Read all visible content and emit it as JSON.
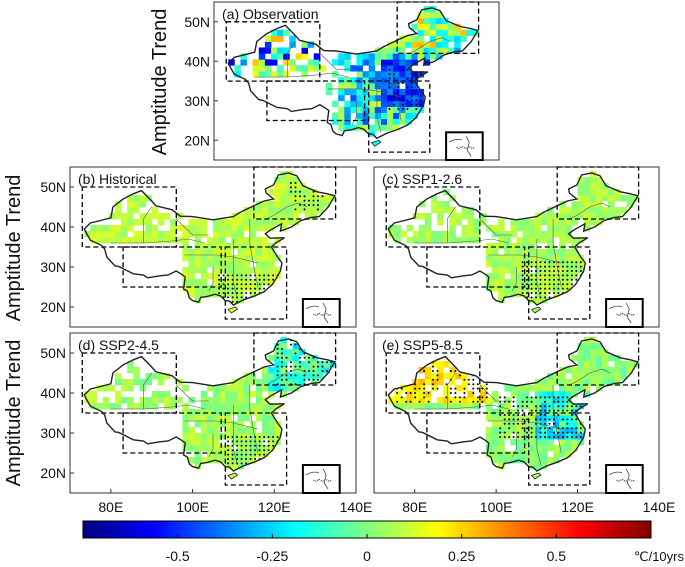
{
  "figure": {
    "ylabel": "Amptitude Trend",
    "colorbar": {
      "ticks": [
        "-0.5",
        "-0.25",
        "0",
        "0.25",
        "0.5"
      ],
      "tick_values": [
        -0.5,
        -0.25,
        0,
        0.25,
        0.5
      ],
      "range": [
        -0.75,
        0.75
      ],
      "unit": "℃/10yrs",
      "stops": [
        "#00007f",
        "#0000ff",
        "#0080ff",
        "#00ffff",
        "#80ff80",
        "#ffff00",
        "#ff8000",
        "#ff0000",
        "#7f0000"
      ]
    },
    "lat_ticks": [
      "50N",
      "40N",
      "30N",
      "20N"
    ],
    "lon_ticks": [
      "80E",
      "100E",
      "120E",
      "140E"
    ]
  },
  "chart_data": [
    {
      "type": "heatmap",
      "title": "(a) Observation",
      "xlabel": "",
      "ylabel": "Amptitude Trend",
      "xlim": [
        70,
        140
      ],
      "ylim": [
        15,
        55
      ],
      "region_boxes": [
        [
          73,
          96,
          35,
          50
        ],
        [
          83,
          107,
          25,
          35
        ],
        [
          108,
          123,
          17,
          35
        ],
        [
          115,
          135,
          42,
          55
        ]
      ],
      "note": "Gridded trend map; west mixed blue/cyan/yellow, strong blue over east-central China with stippling"
    },
    {
      "type": "heatmap",
      "title": "(b) Historical",
      "xlim": [
        70,
        140
      ],
      "ylim": [
        15,
        55
      ],
      "region_boxes": [
        [
          73,
          96,
          35,
          50
        ],
        [
          83,
          107,
          25,
          35
        ],
        [
          108,
          123,
          17,
          35
        ],
        [
          115,
          135,
          42,
          55
        ]
      ],
      "note": "Mostly light green (about 0 to 0.1); stippling in south and northeast"
    },
    {
      "type": "heatmap",
      "title": "(c) SSP1-2.6",
      "xlim": [
        70,
        140
      ],
      "ylim": [
        15,
        55
      ],
      "region_boxes": [
        [
          73,
          96,
          35,
          50
        ],
        [
          83,
          107,
          25,
          35
        ],
        [
          108,
          123,
          17,
          35
        ],
        [
          115,
          135,
          42,
          55
        ]
      ],
      "note": "Mostly green; stippling over southern China"
    },
    {
      "type": "heatmap",
      "title": "(d) SSP2-4.5",
      "xlim": [
        70,
        140
      ],
      "ylim": [
        15,
        55
      ],
      "region_boxes": [
        [
          73,
          96,
          35,
          50
        ],
        [
          83,
          107,
          25,
          35
        ],
        [
          108,
          123,
          17,
          35
        ],
        [
          115,
          135,
          42,
          55
        ]
      ],
      "note": "Green with cyan patches in northeast; stippling in south and northeast"
    },
    {
      "type": "heatmap",
      "title": "(e) SSP5-8.5",
      "xlim": [
        70,
        140
      ],
      "ylim": [
        15,
        55
      ],
      "region_boxes": [
        [
          73,
          96,
          35,
          50
        ],
        [
          83,
          107,
          25,
          35
        ],
        [
          108,
          123,
          17,
          35
        ],
        [
          115,
          135,
          42,
          55
        ]
      ],
      "note": "Yellow-green in northwest, cyan patches in east; dense stippling"
    }
  ]
}
